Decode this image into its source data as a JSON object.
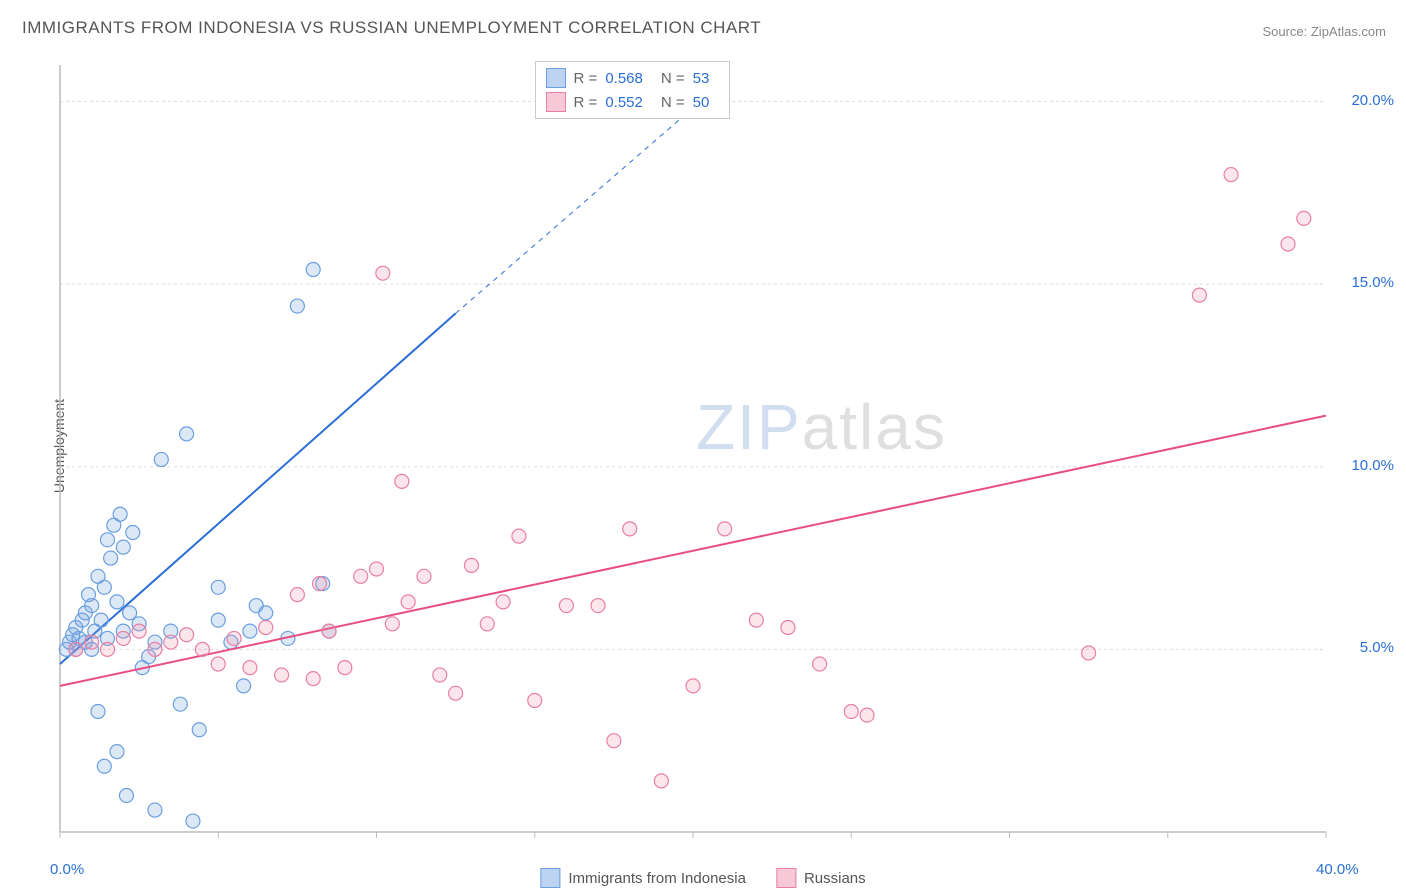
{
  "title": "IMMIGRANTS FROM INDONESIA VS RUSSIAN UNEMPLOYMENT CORRELATION CHART",
  "source_label": "Source: ",
  "source_name": "ZipAtlas.com",
  "y_axis_label": "Unemployment",
  "watermark_a": "ZIP",
  "watermark_b": "atlas",
  "chart": {
    "type": "scatter",
    "xlim": [
      0,
      40
    ],
    "ylim": [
      0,
      21
    ],
    "x_ticks": [
      0,
      40
    ],
    "x_tick_labels": [
      "0.0%",
      "40.0%"
    ],
    "y_ticks": [
      5,
      10,
      15,
      20
    ],
    "y_tick_labels": [
      "5.0%",
      "10.0%",
      "15.0%",
      "20.0%"
    ],
    "grid_color": "#dddddd",
    "axis_color": "#bbbbbb",
    "background_color": "#ffffff",
    "marker_radius": 7,
    "marker_stroke_width": 1.2,
    "series": [
      {
        "id": "indonesia",
        "label": "Immigrants from Indonesia",
        "fill": "rgba(120,165,225,0.25)",
        "stroke": "#6a9fe0",
        "swatch_fill": "#bcd4f2",
        "swatch_stroke": "#6a9fe0",
        "R": "0.568",
        "N": "53",
        "regression": {
          "x1": 0,
          "y1": 4.6,
          "x2": 12.5,
          "y2": 14.2,
          "dash_x2": 20.5,
          "dash_y2": 20.2,
          "color": "#2b6fd6",
          "width": 2
        },
        "points": [
          [
            0.2,
            5.0
          ],
          [
            0.3,
            5.2
          ],
          [
            0.4,
            5.4
          ],
          [
            0.5,
            5.0
          ],
          [
            0.5,
            5.6
          ],
          [
            0.6,
            5.3
          ],
          [
            0.7,
            5.8
          ],
          [
            0.8,
            6.0
          ],
          [
            0.8,
            5.2
          ],
          [
            0.9,
            6.5
          ],
          [
            1.0,
            5.0
          ],
          [
            1.0,
            6.2
          ],
          [
            1.1,
            5.5
          ],
          [
            1.2,
            7.0
          ],
          [
            1.3,
            5.8
          ],
          [
            1.4,
            6.7
          ],
          [
            1.5,
            5.3
          ],
          [
            1.5,
            8.0
          ],
          [
            1.6,
            7.5
          ],
          [
            1.7,
            8.4
          ],
          [
            1.8,
            6.3
          ],
          [
            1.9,
            8.7
          ],
          [
            2.0,
            5.5
          ],
          [
            2.0,
            7.8
          ],
          [
            2.2,
            6.0
          ],
          [
            2.3,
            8.2
          ],
          [
            2.5,
            5.7
          ],
          [
            2.6,
            4.5
          ],
          [
            2.8,
            4.8
          ],
          [
            3.0,
            5.2
          ],
          [
            3.2,
            10.2
          ],
          [
            3.5,
            5.5
          ],
          [
            3.8,
            3.5
          ],
          [
            4.0,
            10.9
          ],
          [
            4.4,
            2.8
          ],
          [
            5.0,
            5.8
          ],
          [
            5.0,
            6.7
          ],
          [
            5.4,
            5.2
          ],
          [
            5.8,
            4.0
          ],
          [
            6.0,
            5.5
          ],
          [
            6.2,
            6.2
          ],
          [
            6.5,
            6.0
          ],
          [
            7.2,
            5.3
          ],
          [
            7.5,
            14.4
          ],
          [
            8.0,
            15.4
          ],
          [
            8.3,
            6.8
          ],
          [
            8.5,
            5.5
          ],
          [
            1.2,
            3.3
          ],
          [
            1.4,
            1.8
          ],
          [
            1.8,
            2.2
          ],
          [
            2.1,
            1.0
          ],
          [
            3.0,
            0.6
          ],
          [
            4.2,
            0.3
          ]
        ]
      },
      {
        "id": "russians",
        "label": "Russians",
        "fill": "rgba(240,140,170,0.22)",
        "stroke": "#e97fa4",
        "swatch_fill": "#f7c9d7",
        "swatch_stroke": "#e97fa4",
        "R": "0.552",
        "N": "50",
        "regression": {
          "x1": 0,
          "y1": 4.0,
          "x2": 40,
          "y2": 11.4,
          "color": "#e94d82",
          "width": 2
        },
        "points": [
          [
            0.5,
            5.0
          ],
          [
            1.0,
            5.2
          ],
          [
            1.5,
            5.0
          ],
          [
            2.0,
            5.3
          ],
          [
            2.5,
            5.5
          ],
          [
            3.0,
            5.0
          ],
          [
            3.5,
            5.2
          ],
          [
            4.0,
            5.4
          ],
          [
            4.5,
            5.0
          ],
          [
            5.0,
            4.6
          ],
          [
            5.5,
            5.3
          ],
          [
            6.0,
            4.5
          ],
          [
            6.5,
            5.6
          ],
          [
            7.0,
            4.3
          ],
          [
            7.5,
            6.5
          ],
          [
            8.0,
            4.2
          ],
          [
            8.2,
            6.8
          ],
          [
            8.5,
            5.5
          ],
          [
            9.0,
            4.5
          ],
          [
            9.5,
            7.0
          ],
          [
            10.0,
            7.2
          ],
          [
            10.2,
            15.3
          ],
          [
            10.5,
            5.7
          ],
          [
            10.8,
            9.6
          ],
          [
            11.0,
            6.3
          ],
          [
            11.5,
            7.0
          ],
          [
            12.0,
            4.3
          ],
          [
            12.5,
            3.8
          ],
          [
            13.0,
            7.3
          ],
          [
            13.5,
            5.7
          ],
          [
            14.0,
            6.3
          ],
          [
            14.5,
            8.1
          ],
          [
            15.0,
            3.6
          ],
          [
            16.0,
            6.2
          ],
          [
            17.0,
            6.2
          ],
          [
            17.5,
            2.5
          ],
          [
            18.0,
            8.3
          ],
          [
            19.0,
            1.4
          ],
          [
            20.0,
            4.0
          ],
          [
            21.0,
            8.3
          ],
          [
            22.0,
            5.8
          ],
          [
            23.0,
            5.6
          ],
          [
            24.0,
            4.6
          ],
          [
            25.0,
            3.3
          ],
          [
            25.5,
            3.2
          ],
          [
            32.5,
            4.9
          ],
          [
            36.0,
            14.7
          ],
          [
            37.0,
            18.0
          ],
          [
            38.8,
            16.1
          ],
          [
            39.3,
            16.8
          ]
        ]
      }
    ]
  },
  "legend_top": {
    "R_label": "R =",
    "N_label": "N ="
  }
}
